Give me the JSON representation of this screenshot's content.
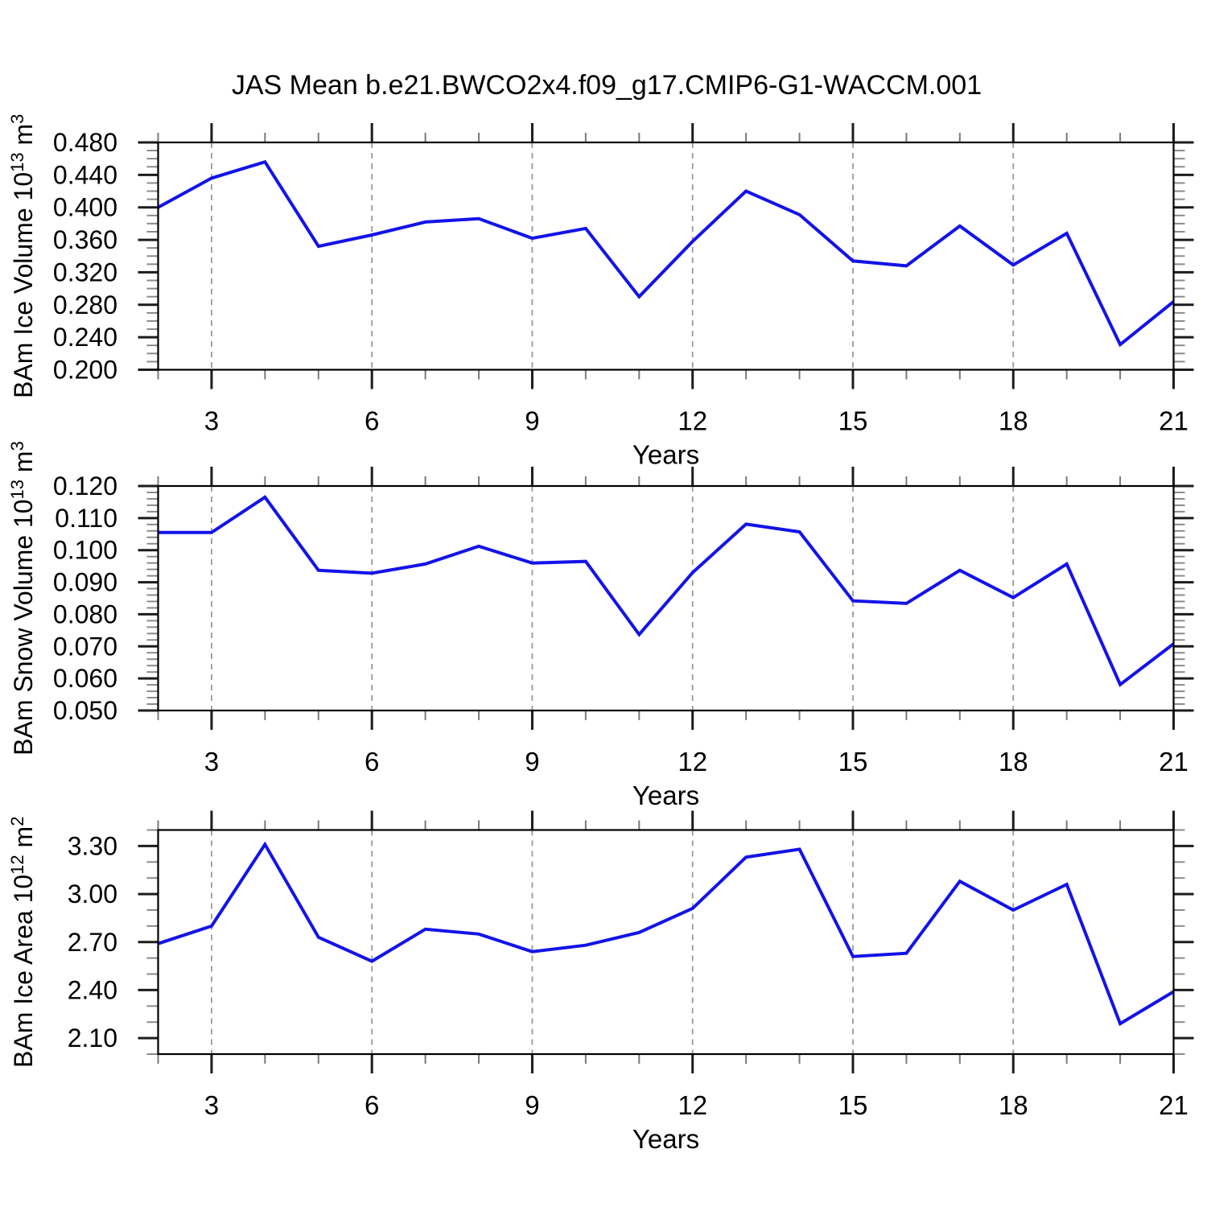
{
  "chart_data": {
    "type": "line",
    "title": "JAS Mean b.e21.BWCO2x4.f09_g17.CMIP6-G1-WACCM.001",
    "line_color": "#1313e8",
    "grid_color": "#9a9a9a",
    "x_axis": {
      "label": "Years",
      "min": 2,
      "max": 21,
      "minor_tick_step": 1,
      "major_ticks": [
        3,
        6,
        9,
        12,
        15,
        18,
        21
      ],
      "major_tick_labels": [
        "3",
        "6",
        "9",
        "12",
        "15",
        "18",
        "21"
      ],
      "gridlines": [
        3,
        6,
        9,
        12,
        15,
        18
      ]
    },
    "x": [
      2,
      3,
      4,
      5,
      6,
      7,
      8,
      9,
      10,
      11,
      12,
      13,
      14,
      15,
      16,
      17,
      18,
      19,
      20,
      21
    ],
    "panels": [
      {
        "id": "ice-volume",
        "ylabel_plain": "BAm Ice Volume 10^13 m^3",
        "ylabel_parts": [
          {
            "t": "BAm Ice Volume 10"
          },
          {
            "t": "13",
            "sup": true
          },
          {
            "t": " m"
          },
          {
            "t": "3",
            "sup": true
          }
        ],
        "ylim": [
          0.2,
          0.48
        ],
        "ytick_values": [
          0.2,
          0.24,
          0.28,
          0.32,
          0.36,
          0.4,
          0.44,
          0.48
        ],
        "ytick_labels": [
          "0.200",
          "0.240",
          "0.280",
          "0.320",
          "0.360",
          "0.400",
          "0.440",
          "0.480"
        ],
        "yminor_step": 0.01,
        "values": [
          0.4,
          0.436,
          0.456,
          0.352,
          0.366,
          0.382,
          0.386,
          0.362,
          0.374,
          0.29,
          0.358,
          0.42,
          0.391,
          0.334,
          0.328,
          0.377,
          0.329,
          0.368,
          0.231,
          0.284
        ]
      },
      {
        "id": "snow-volume",
        "ylabel_plain": "BAm Snow Volume 10^13 m^3",
        "ylabel_parts": [
          {
            "t": "BAm Snow Volume 10"
          },
          {
            "t": "13",
            "sup": true
          },
          {
            "t": " m"
          },
          {
            "t": "3",
            "sup": true
          }
        ],
        "ylim": [
          0.05,
          0.12
        ],
        "ytick_values": [
          0.05,
          0.06,
          0.07,
          0.08,
          0.09,
          0.1,
          0.11,
          0.12
        ],
        "ytick_labels": [
          "0.050",
          "0.060",
          "0.070",
          "0.080",
          "0.090",
          "0.100",
          "0.110",
          "0.120"
        ],
        "yminor_step": 0.002,
        "values": [
          0.1055,
          0.1055,
          0.1165,
          0.0937,
          0.0928,
          0.0957,
          0.1012,
          0.096,
          0.0965,
          0.0737,
          0.093,
          0.1081,
          0.1057,
          0.0842,
          0.0834,
          0.0937,
          0.0852,
          0.0957,
          0.0581,
          0.0708
        ]
      },
      {
        "id": "ice-area",
        "ylabel_plain": "BAm Ice Area 10^12 m^2",
        "ylabel_parts": [
          {
            "t": "BAm Ice Area 10"
          },
          {
            "t": "12",
            "sup": true
          },
          {
            "t": " m"
          },
          {
            "t": "2",
            "sup": true
          }
        ],
        "ylim": [
          2.0,
          3.4
        ],
        "ytick_values": [
          2.1,
          2.4,
          2.7,
          3.0,
          3.3
        ],
        "ytick_labels": [
          "2.10",
          "2.40",
          "2.70",
          "3.00",
          "3.30"
        ],
        "yminor_step": 0.1,
        "values": [
          2.69,
          2.8,
          3.31,
          2.73,
          2.58,
          2.78,
          2.75,
          2.64,
          2.68,
          2.76,
          2.91,
          3.23,
          3.28,
          2.61,
          2.63,
          3.08,
          2.9,
          3.06,
          2.19,
          2.39
        ]
      }
    ]
  }
}
